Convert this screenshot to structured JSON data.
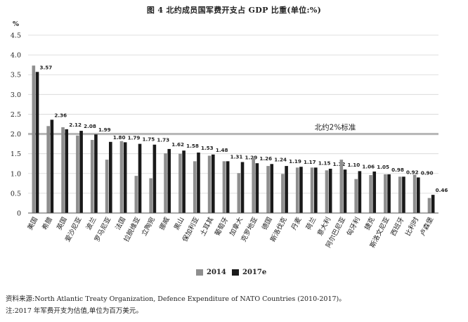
{
  "title": "图 4   北约成员国军费开支占 GDP 比重(单位:%)",
  "notes": {
    "source": "资料来源:North Atlantic Treaty Organization, Defence Expenditure of NATO Countries (2010-2017)。",
    "note": "注:2017 年军费开支为估值,单位为百万美元。"
  },
  "colors": {
    "series_2014": "#8e8e8e",
    "series_2017": "#1a1a1a",
    "reference_line": "#b8b8b8",
    "grid": "#d6d6d6"
  },
  "chart_data": {
    "type": "bar",
    "ylabel": "%",
    "ylim": [
      0,
      4.5
    ],
    "yticks": [
      "0",
      "0.5",
      "1.0",
      "1.5",
      "2.0",
      "2.5",
      "3.0",
      "3.5",
      "4.0",
      "4.5"
    ],
    "grid": true,
    "legend_position": "bottom-center",
    "categories": [
      "美国",
      "希腊",
      "英国",
      "爱沙尼亚",
      "波兰",
      "罗马尼亚",
      "法国",
      "拉脱维亚",
      "立陶宛",
      "挪威",
      "黑山",
      "保加利亚",
      "土耳其",
      "葡萄牙",
      "加拿大",
      "克罗地亚",
      "德国",
      "斯洛伐克",
      "丹麦",
      "荷兰",
      "意大利",
      "阿尔巴尼亚",
      "匈牙利",
      "捷克",
      "斯洛文尼亚",
      "西班牙",
      "比利时",
      "卢森堡"
    ],
    "series": [
      {
        "name": "2014",
        "values": [
          3.73,
          2.2,
          2.17,
          1.96,
          1.85,
          1.35,
          1.82,
          0.94,
          0.88,
          1.51,
          1.5,
          1.31,
          1.45,
          1.31,
          1.01,
          1.4,
          1.19,
          0.99,
          1.15,
          1.15,
          1.08,
          1.35,
          0.86,
          0.96,
          0.98,
          0.92,
          0.97,
          0.38
        ]
      },
      {
        "name": "2017e",
        "values": [
          3.57,
          2.36,
          2.12,
          2.08,
          1.99,
          1.8,
          1.79,
          1.75,
          1.73,
          1.62,
          1.58,
          1.53,
          1.48,
          1.31,
          1.29,
          1.26,
          1.24,
          1.19,
          1.17,
          1.15,
          1.12,
          1.1,
          1.06,
          1.05,
          0.98,
          0.92,
          0.9,
          0.46
        ]
      }
    ],
    "data_labels": [
      "3.57",
      "2.36",
      "2.12",
      "2.08",
      "1.99",
      "1.80",
      "1.79",
      "1.75",
      "1.73",
      "1.62",
      "1.58",
      "1.53",
      "1.48",
      "1.31",
      "1.29",
      "1.26",
      "1.24",
      "1.19",
      "1.17",
      "1.15",
      "1.12",
      "1.10",
      "1.06",
      "1.05",
      "0.98",
      "0.92",
      "0.90",
      "0.46"
    ],
    "reference_line": {
      "value": 2.0,
      "label": "北约2%标准"
    }
  }
}
